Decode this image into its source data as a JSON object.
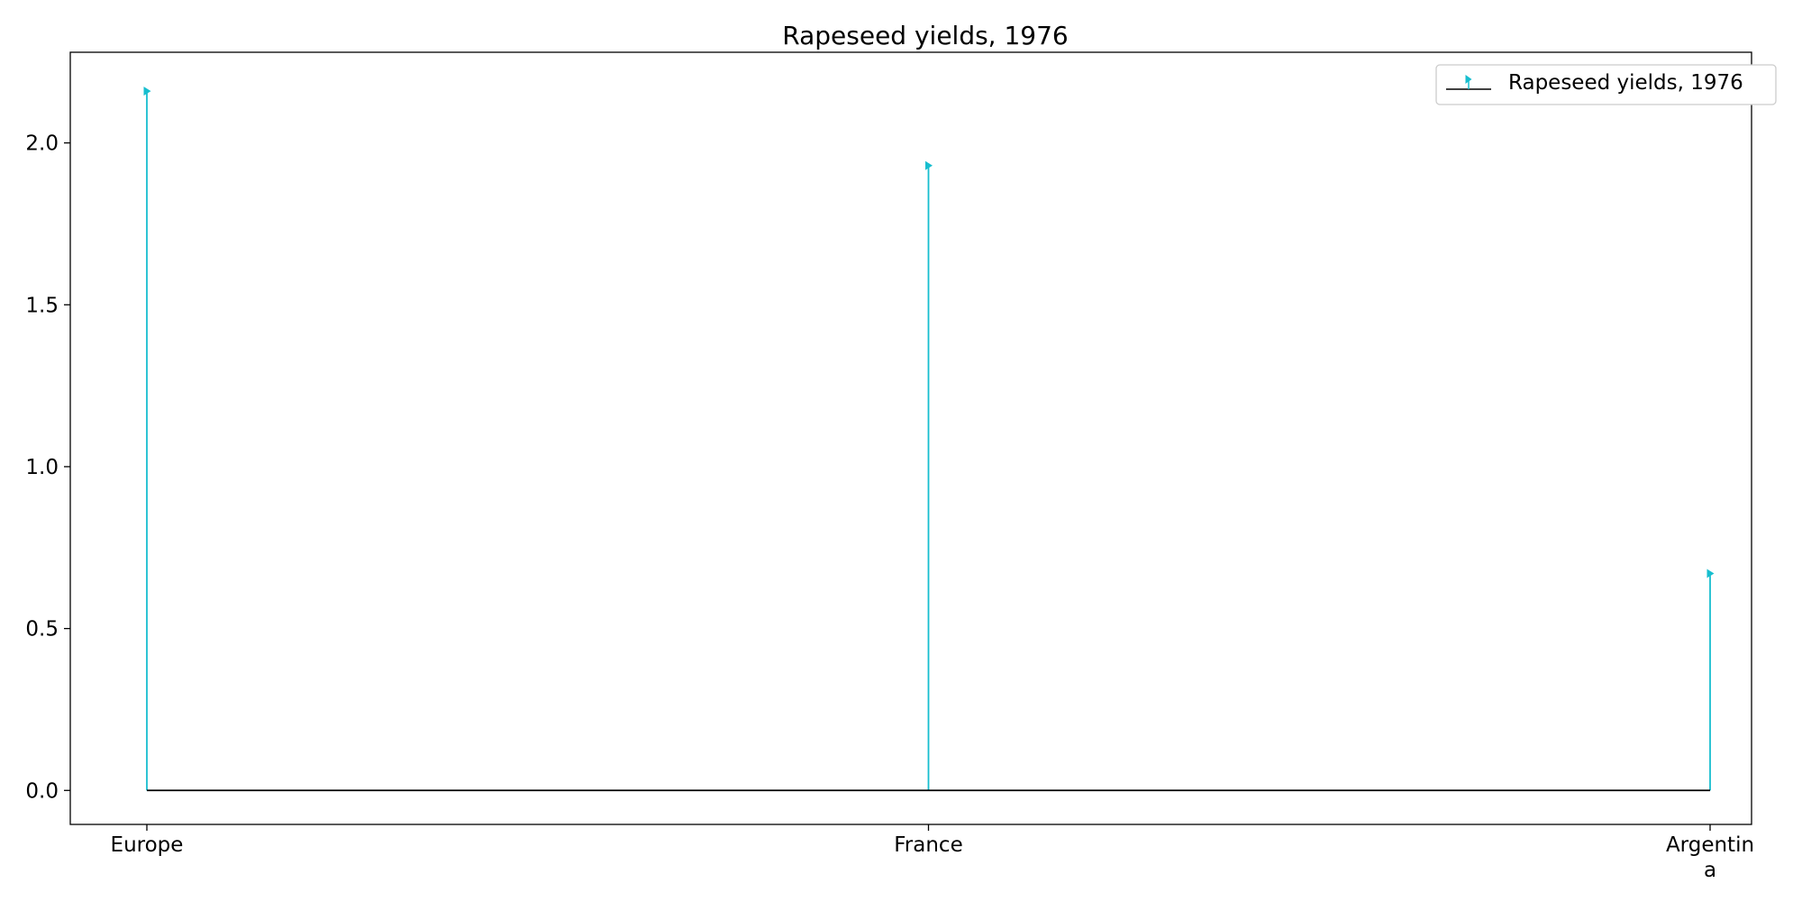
{
  "chart_data": {
    "type": "stem",
    "title": "Rapeseed yields, 1976",
    "categories": [
      [
        "Europe"
      ],
      [
        "France"
      ],
      [
        "Argentin",
        "a"
      ]
    ],
    "series": [
      {
        "name": "Rapeseed yields, 1976",
        "values": [
          2.16,
          1.93,
          0.67
        ],
        "color": "#17becf"
      }
    ],
    "ylim": [
      -0.105,
      2.28
    ],
    "yticks": [
      "0.0",
      "0.5",
      "1.0",
      "1.5",
      "2.0"
    ],
    "baseline_color": "#000000",
    "legend_position": "top-right",
    "grid": false
  }
}
